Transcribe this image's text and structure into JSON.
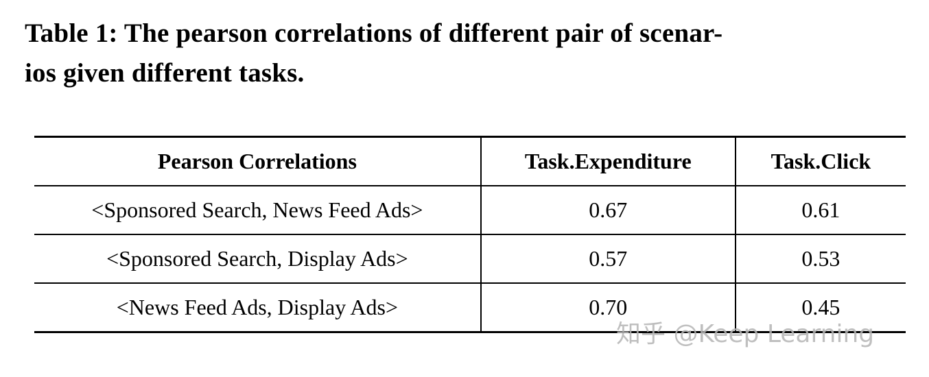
{
  "caption": {
    "line1": "Table 1: The pearson correlations of different pair of scenar-",
    "line2": "ios given different tasks."
  },
  "table": {
    "headers": [
      "Pearson Correlations",
      "Task.Expenditure",
      "Task.Click"
    ],
    "rows": [
      [
        "<Sponsored Search, News Feed Ads>",
        "0.67",
        "0.61"
      ],
      [
        "<Sponsored Search, Display Ads>",
        "0.57",
        "0.53"
      ],
      [
        "<News Feed Ads, Display Ads>",
        "0.70",
        "0.45"
      ]
    ]
  },
  "chart_data": {
    "type": "table",
    "title": "Table 1: The pearson correlations of different pair of scenarios given different tasks.",
    "columns": [
      "Pearson Correlations",
      "Task.Expenditure",
      "Task.Click"
    ],
    "rows": [
      {
        "pair": "<Sponsored Search, News Feed Ads>",
        "task_expenditure": 0.67,
        "task_click": 0.61
      },
      {
        "pair": "<Sponsored Search, Display Ads>",
        "task_expenditure": 0.57,
        "task_click": 0.53
      },
      {
        "pair": "<News Feed Ads, Display Ads>",
        "task_expenditure": 0.7,
        "task_click": 0.45
      }
    ]
  },
  "watermark": "知乎 @Keep Learning"
}
